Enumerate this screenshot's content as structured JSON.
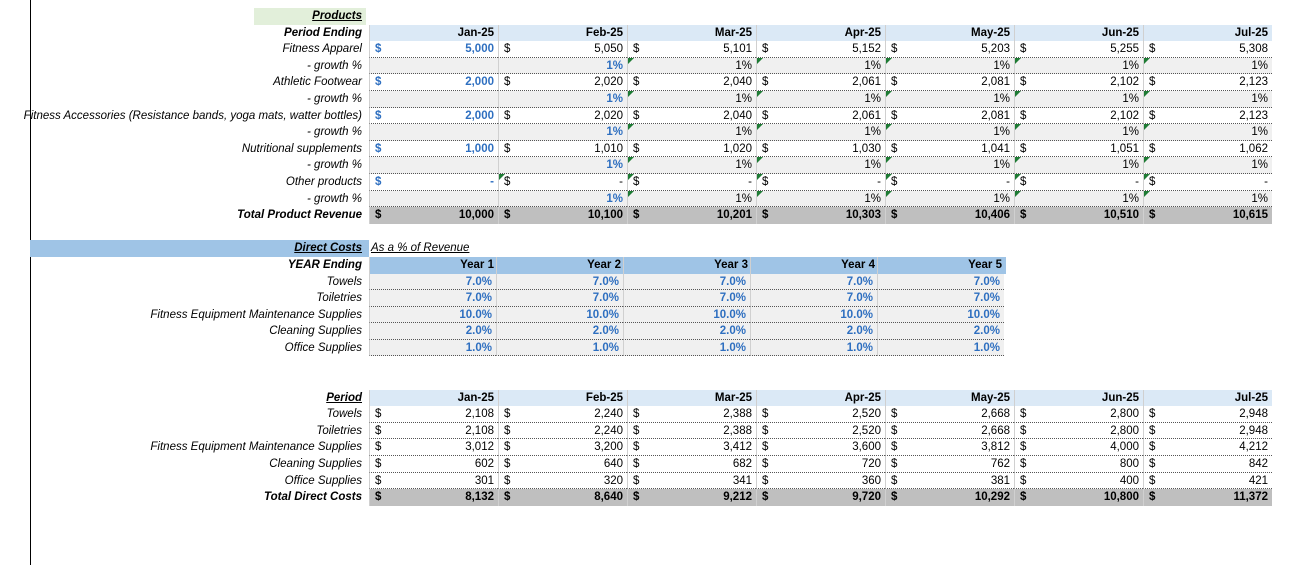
{
  "products": {
    "title": "Products",
    "header_label": "Period Ending",
    "months": [
      "Jan-25",
      "Feb-25",
      "Mar-25",
      "Apr-25",
      "May-25",
      "Jun-25",
      "Jul-25"
    ],
    "rows": [
      {
        "label": "Fitness Apparel",
        "values": [
          "5,000",
          "5,050",
          "5,101",
          "5,152",
          "5,203",
          "5,255",
          "5,308"
        ],
        "growth": [
          "",
          "1%",
          "1%",
          "1%",
          "1%",
          "1%",
          "1%"
        ]
      },
      {
        "label": "Athletic Footwear",
        "values": [
          "2,000",
          "2,020",
          "2,040",
          "2,061",
          "2,081",
          "2,102",
          "2,123"
        ],
        "growth": [
          "",
          "1%",
          "1%",
          "1%",
          "1%",
          "1%",
          "1%"
        ]
      },
      {
        "label": "Fitness Accessories (Resistance bands, yoga mats, watter bottles)",
        "values": [
          "2,000",
          "2,020",
          "2,040",
          "2,061",
          "2,081",
          "2,102",
          "2,123"
        ],
        "growth": [
          "",
          "1%",
          "1%",
          "1%",
          "1%",
          "1%",
          "1%"
        ]
      },
      {
        "label": "Nutritional supplements",
        "values": [
          "1,000",
          "1,010",
          "1,020",
          "1,030",
          "1,041",
          "1,051",
          "1,062"
        ],
        "growth": [
          "",
          "1%",
          "1%",
          "1%",
          "1%",
          "1%",
          "1%"
        ]
      },
      {
        "label": "Other products",
        "values": [
          "-",
          "-",
          "-",
          "-",
          "-",
          "-",
          "-"
        ],
        "growth": [
          "",
          "1%",
          "1%",
          "1%",
          "1%",
          "1%",
          "1%"
        ]
      }
    ],
    "growth_label": "- growth %",
    "total_label": "Total Product Revenue",
    "totals": [
      "10,000",
      "10,100",
      "10,201",
      "10,303",
      "10,406",
      "10,510",
      "10,615"
    ],
    "currency": "$"
  },
  "direct_costs": {
    "title": "Direct Costs",
    "note": "As a % of Revenue",
    "header_label": "YEAR Ending",
    "years": [
      "Year 1",
      "Year 2",
      "Year 3",
      "Year 4",
      "Year 5"
    ],
    "rows": [
      {
        "label": "Towels",
        "values": [
          "7.0%",
          "7.0%",
          "7.0%",
          "7.0%",
          "7.0%"
        ]
      },
      {
        "label": "Toiletries",
        "values": [
          "7.0%",
          "7.0%",
          "7.0%",
          "7.0%",
          "7.0%"
        ]
      },
      {
        "label": "Fitness Equipment Maintenance Supplies",
        "values": [
          "10.0%",
          "10.0%",
          "10.0%",
          "10.0%",
          "10.0%"
        ]
      },
      {
        "label": "Cleaning Supplies",
        "values": [
          "2.0%",
          "2.0%",
          "2.0%",
          "2.0%",
          "2.0%"
        ]
      },
      {
        "label": "Office Supplies",
        "values": [
          "1.0%",
          "1.0%",
          "1.0%",
          "1.0%",
          "1.0%"
        ]
      }
    ]
  },
  "period_costs": {
    "header_label": "Period",
    "months": [
      "Jan-25",
      "Feb-25",
      "Mar-25",
      "Apr-25",
      "May-25",
      "Jun-25",
      "Jul-25"
    ],
    "rows": [
      {
        "label": "Towels",
        "values": [
          "2,108",
          "2,240",
          "2,388",
          "2,520",
          "2,668",
          "2,800",
          "2,948"
        ]
      },
      {
        "label": "Toiletries",
        "values": [
          "2,108",
          "2,240",
          "2,388",
          "2,520",
          "2,668",
          "2,800",
          "2,948"
        ]
      },
      {
        "label": "Fitness Equipment Maintenance Supplies",
        "values": [
          "3,012",
          "3,200",
          "3,412",
          "3,600",
          "3,812",
          "4,000",
          "4,212"
        ]
      },
      {
        "label": "Cleaning Supplies",
        "values": [
          "602",
          "640",
          "682",
          "720",
          "762",
          "800",
          "842"
        ]
      },
      {
        "label": "Office Supplies",
        "values": [
          "301",
          "320",
          "341",
          "360",
          "381",
          "400",
          "421"
        ]
      }
    ],
    "total_label": "Total Direct Costs",
    "totals": [
      "8,132",
      "8,640",
      "9,212",
      "9,720",
      "10,292",
      "10,800",
      "11,372"
    ],
    "currency": "$"
  },
  "colors": {
    "input_blue": "#2e6fc0",
    "header_bg": "#dbe9f6",
    "total_bg": "#bfbfbf",
    "title_green": "#e2efda",
    "title_blue": "#9fc4e6"
  }
}
